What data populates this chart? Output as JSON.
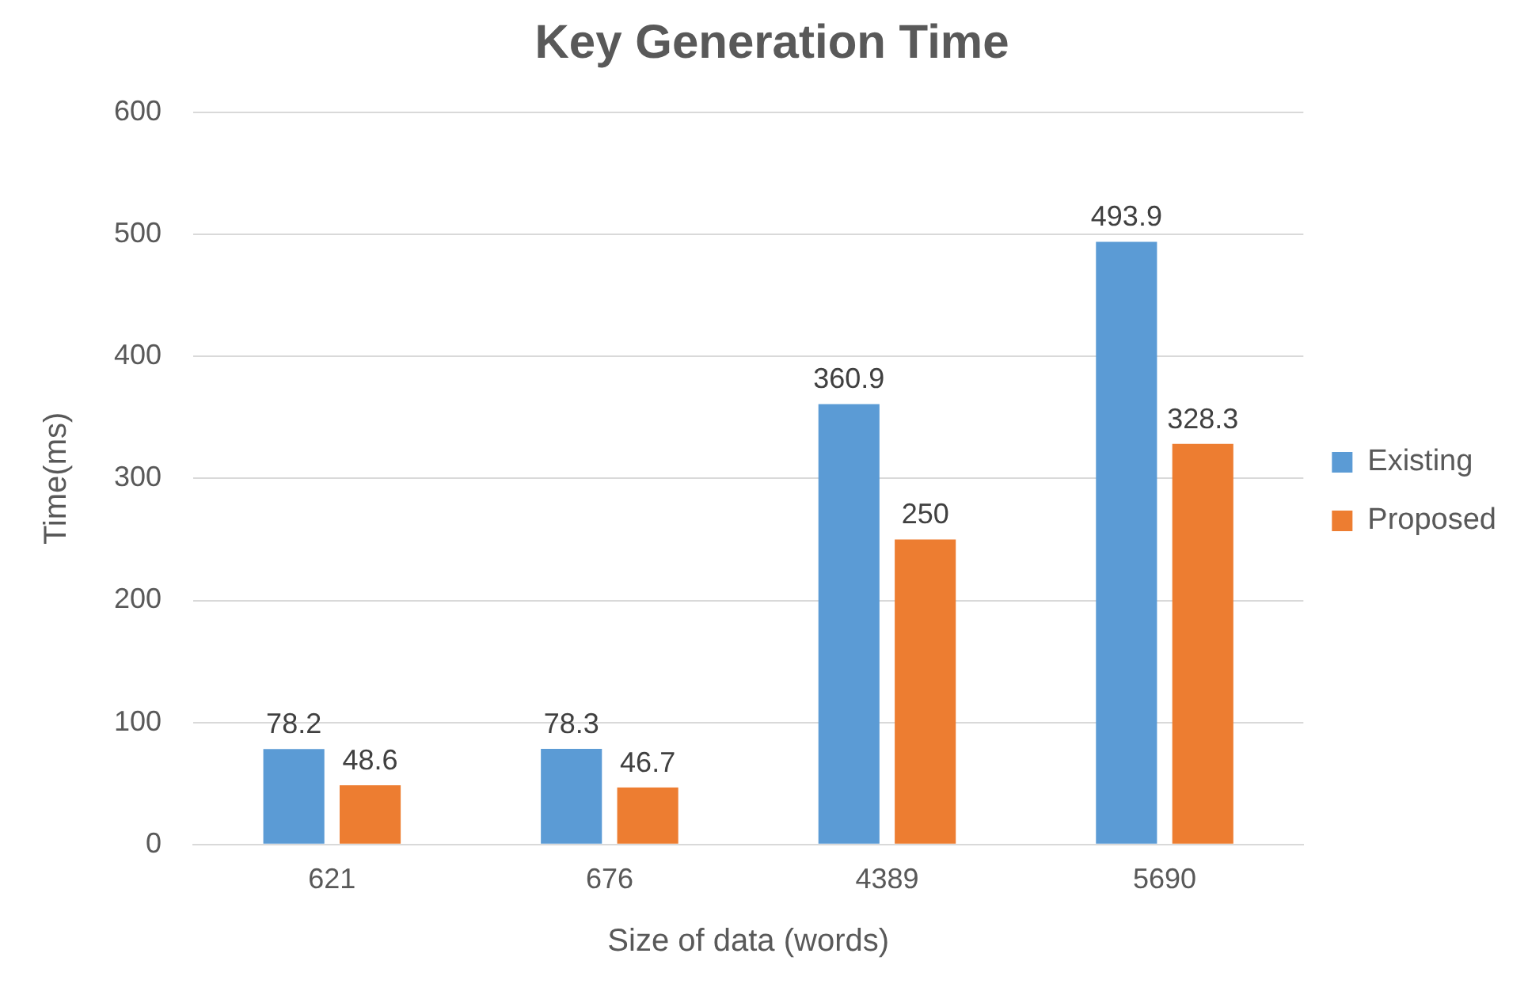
{
  "chart_data": {
    "type": "bar",
    "title": "Key Generation Time",
    "xlabel": "Size of data (words)",
    "ylabel": "Time(ms)",
    "categories": [
      "621",
      "676",
      "4389",
      "5690"
    ],
    "series": [
      {
        "name": "Existing",
        "color": "#5b9bd5",
        "values": [
          78.2,
          78.3,
          360.9,
          493.9
        ]
      },
      {
        "name": "Proposed",
        "color": "#ed7d31",
        "values": [
          48.6,
          46.7,
          250,
          328.3
        ]
      }
    ],
    "ylim": [
      0,
      600
    ],
    "yticks": [
      0,
      100,
      200,
      300,
      400,
      500,
      600
    ],
    "grid": "y",
    "legend": "right",
    "data_labels": true
  }
}
